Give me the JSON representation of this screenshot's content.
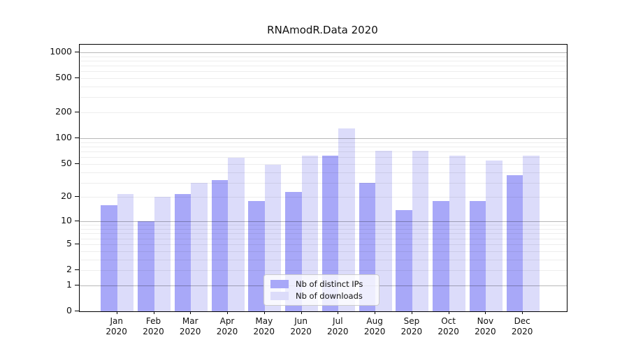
{
  "chart": {
    "title": "RNAmodR.Data 2020"
  },
  "chart_data": {
    "type": "bar",
    "title": "RNAmodR.Data 2020",
    "categories": [
      "Jan 2020",
      "Feb 2020",
      "Mar 2020",
      "Apr 2020",
      "May 2020",
      "Jun 2020",
      "Jul 2020",
      "Aug 2020",
      "Sep 2020",
      "Oct 2020",
      "Nov 2020",
      "Dec 2020"
    ],
    "series": [
      {
        "name": "Nb of distinct IPs",
        "color": "#a8a8f8",
        "values": [
          16,
          10,
          22,
          32,
          18,
          23,
          62,
          30,
          14,
          18,
          18,
          37
        ]
      },
      {
        "name": "Nb of downloads",
        "color": "#dcdcfa",
        "values": [
          22,
          20,
          30,
          59,
          49,
          63,
          130,
          72,
          72,
          62,
          55,
          63
        ]
      }
    ],
    "xlabel": "",
    "ylabel": "",
    "yscale": "log1p",
    "ylim": [
      0,
      1225
    ],
    "y_tick_labels": [
      0,
      1,
      2,
      5,
      10,
      20,
      50,
      100,
      200,
      500,
      1000
    ],
    "y_major_gridlines": [
      1,
      10,
      100,
      1000
    ],
    "y_minor_gridlines": [
      2,
      3,
      4,
      5,
      6,
      7,
      8,
      9,
      20,
      30,
      40,
      50,
      60,
      70,
      80,
      90,
      200,
      300,
      400,
      500,
      600,
      700,
      800,
      900
    ],
    "grid": true,
    "legend_position": "lower center",
    "legend": [
      "Nb of distinct IPs",
      "Nb of downloads"
    ]
  },
  "colors": {
    "distinct_ips_bar": "#a8a8f8",
    "downloads_bar": "#dcdcfa",
    "spine": "#000000",
    "legend_border": "#cccccc",
    "background": "#ffffff"
  }
}
